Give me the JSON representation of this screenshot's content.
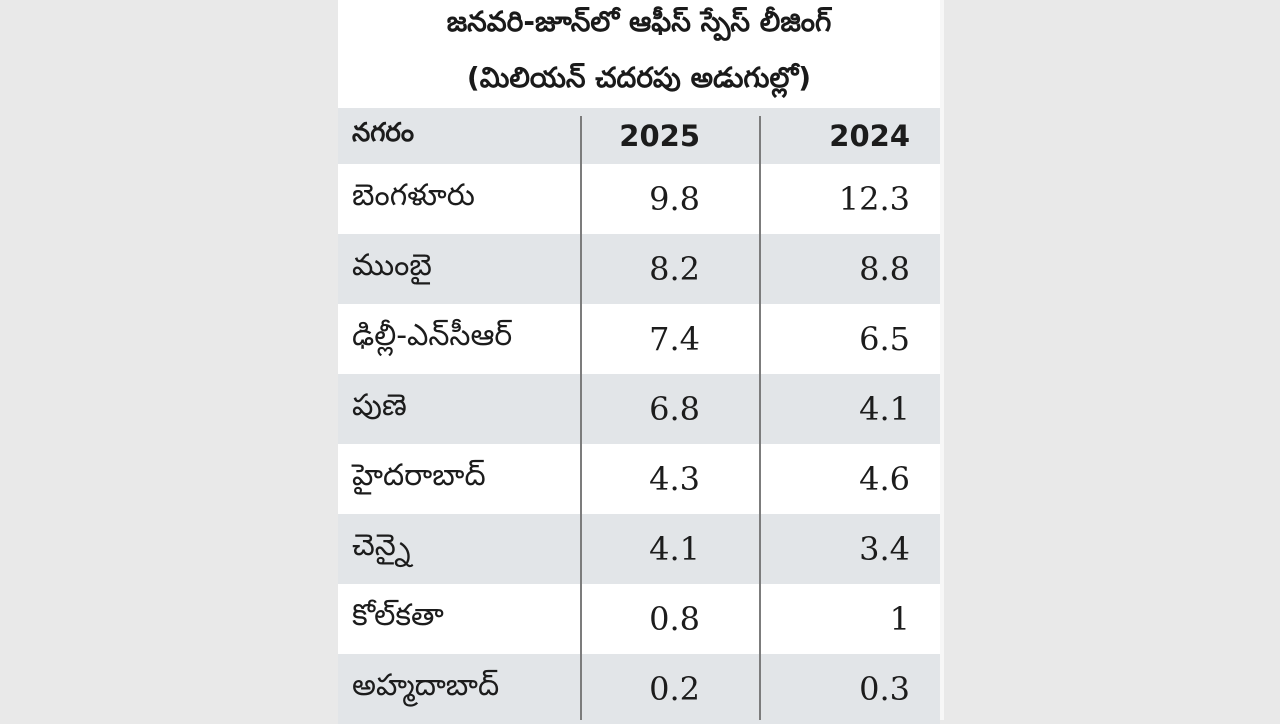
{
  "chart_data": {
    "type": "table",
    "title": "జనవరి-జూన్‌లో ఆఫీస్ స్పేస్ లీజింగ్",
    "subtitle": "(మిలియన్ చదరపు అడుగుల్లో)",
    "header": {
      "city": "నగరం",
      "col_2025": "2025",
      "col_2024": "2024"
    },
    "rows": [
      {
        "city": "బెంగళూరు",
        "v2025": "9.8",
        "v2024": "12.3"
      },
      {
        "city": "ముంబై",
        "v2025": "8.2",
        "v2024": "8.8"
      },
      {
        "city": "ఢిల్లీ-ఎన్‌సీఆర్",
        "v2025": "7.4",
        "v2024": "6.5"
      },
      {
        "city": "పుణె",
        "v2025": "6.8",
        "v2024": "4.1"
      },
      {
        "city": "హైదరాబాద్",
        "v2025": "4.3",
        "v2024": "4.6"
      },
      {
        "city": "చెన్నై",
        "v2025": "4.1",
        "v2024": "3.4"
      },
      {
        "city": "కోల్‌కతా",
        "v2025": "0.8",
        "v2024": "1"
      },
      {
        "city": "అహ్మదాబాద్",
        "v2025": "0.2",
        "v2024": "0.3"
      }
    ],
    "colors": {
      "shaded_row": "#e2e5e8",
      "background": "#ffffff",
      "outer": "#e9e9e9",
      "divider": "#7c7c7c"
    }
  }
}
